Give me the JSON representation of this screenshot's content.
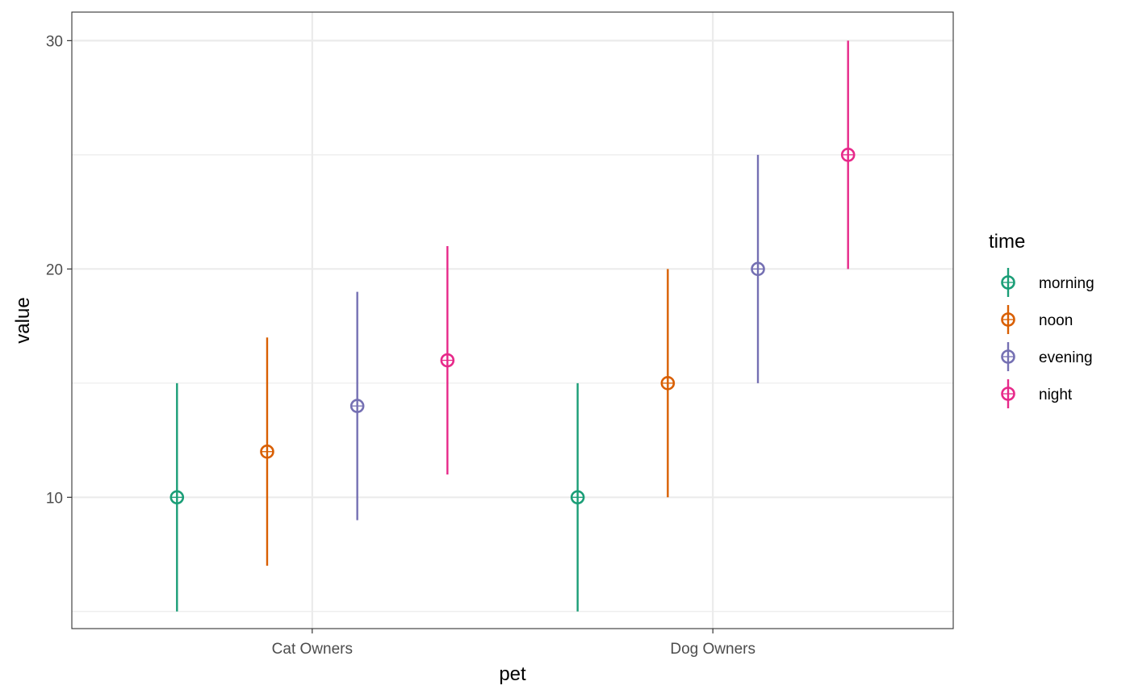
{
  "chart_data": {
    "type": "scatter",
    "subtype": "pointrange",
    "xlabel": "pet",
    "ylabel": "value",
    "categories": [
      "Cat Owners",
      "Dog Owners"
    ],
    "yticks": [
      10,
      20,
      30
    ],
    "ylim": [
      4.25,
      31.25
    ],
    "grid": true,
    "legend": {
      "title": "time",
      "placement": "right"
    },
    "series": [
      {
        "name": "morning",
        "color": "#1b9e77",
        "points": [
          {
            "category": "Cat Owners",
            "y": 10,
            "ymin": 5,
            "ymax": 15
          },
          {
            "category": "Dog Owners",
            "y": 10,
            "ymin": 5,
            "ymax": 15
          }
        ]
      },
      {
        "name": "noon",
        "color": "#d95f02",
        "points": [
          {
            "category": "Cat Owners",
            "y": 12,
            "ymin": 7,
            "ymax": 17
          },
          {
            "category": "Dog Owners",
            "y": 15,
            "ymin": 10,
            "ymax": 20
          }
        ]
      },
      {
        "name": "evening",
        "color": "#7570b3",
        "points": [
          {
            "category": "Cat Owners",
            "y": 14,
            "ymin": 9,
            "ymax": 19
          },
          {
            "category": "Dog Owners",
            "y": 20,
            "ymin": 15,
            "ymax": 25
          }
        ]
      },
      {
        "name": "night",
        "color": "#e7298a",
        "points": [
          {
            "category": "Cat Owners",
            "y": 16,
            "ymin": 11,
            "ymax": 21
          },
          {
            "category": "Dog Owners",
            "y": 25,
            "ymin": 20,
            "ymax": 30
          }
        ]
      }
    ]
  }
}
